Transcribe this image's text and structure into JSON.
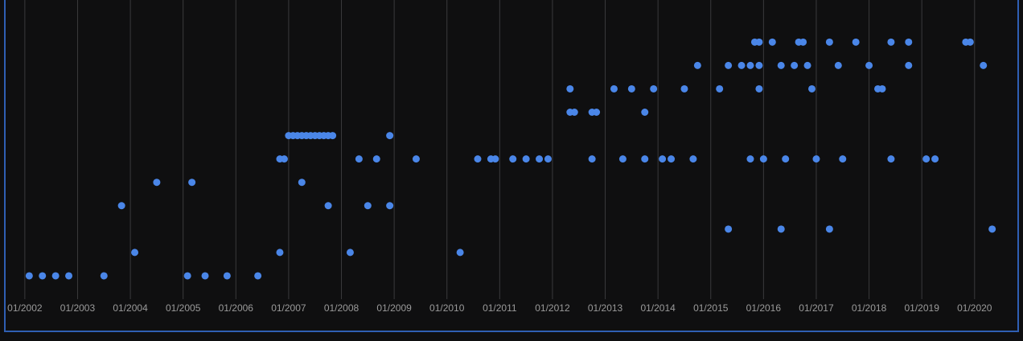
{
  "chart_data": {
    "type": "scatter",
    "xlim": [
      "2001-09",
      "2020-10"
    ],
    "ylim": [
      0,
      12.8
    ],
    "xticks": [
      {
        "value": "2002-01",
        "label": "01/2002"
      },
      {
        "value": "2003-01",
        "label": "01/2003"
      },
      {
        "value": "2004-01",
        "label": "01/2004"
      },
      {
        "value": "2005-01",
        "label": "01/2005"
      },
      {
        "value": "2006-01",
        "label": "01/2006"
      },
      {
        "value": "2007-01",
        "label": "01/2007"
      },
      {
        "value": "2008-01",
        "label": "01/2008"
      },
      {
        "value": "2009-01",
        "label": "01/2009"
      },
      {
        "value": "2010-01",
        "label": "01/2010"
      },
      {
        "value": "2011-01",
        "label": "01/2011"
      },
      {
        "value": "2012-01",
        "label": "01/2012"
      },
      {
        "value": "2013-01",
        "label": "01/2013"
      },
      {
        "value": "2014-01",
        "label": "01/2014"
      },
      {
        "value": "2015-01",
        "label": "01/2015"
      },
      {
        "value": "2016-01",
        "label": "01/2016"
      },
      {
        "value": "2017-01",
        "label": "01/2017"
      },
      {
        "value": "2018-01",
        "label": "01/2018"
      },
      {
        "value": "2019-01",
        "label": "01/2019"
      },
      {
        "value": "2020-01",
        "label": "01/2020"
      }
    ],
    "grid": true,
    "series": [
      {
        "color": "#4a86e8",
        "x": [
          "2002-02",
          "2002-05",
          "2002-08",
          "2002-11",
          "2003-07",
          "2005-02",
          "2005-06",
          "2005-11",
          "2006-06",
          "2004-02",
          "2006-11",
          "2008-03",
          "2010-04",
          "2015-05",
          "2016-05",
          "2017-04",
          "2020-05",
          "2003-11",
          "2007-10",
          "2008-07",
          "2008-12",
          "2004-07",
          "2005-03",
          "2007-04",
          "2006-11",
          "2006-12",
          "2008-05",
          "2008-09",
          "2009-06",
          "2010-08",
          "2010-11",
          "2010-12",
          "2011-04",
          "2011-07",
          "2011-10",
          "2011-12",
          "2012-10",
          "2013-05",
          "2013-10",
          "2014-02",
          "2014-04",
          "2014-09",
          "2015-10",
          "2016-01",
          "2016-06",
          "2017-01",
          "2017-07",
          "2018-06",
          "2019-02",
          "2019-04",
          "2007-01",
          "2007-02",
          "2007-03",
          "2007-04",
          "2007-05",
          "2007-06",
          "2007-07",
          "2007-08",
          "2007-09",
          "2007-10",
          "2007-11",
          "2008-12",
          "2012-05",
          "2012-06",
          "2012-10",
          "2012-11",
          "2013-10",
          "2012-05",
          "2013-03",
          "2013-07",
          "2013-12",
          "2014-07",
          "2015-03",
          "2015-12",
          "2016-12",
          "2018-03",
          "2018-04",
          "2014-10",
          "2015-05",
          "2015-08",
          "2015-10",
          "2015-12",
          "2016-05",
          "2016-08",
          "2016-11",
          "2017-06",
          "2018-01",
          "2018-10",
          "2020-03",
          "2015-11",
          "2015-12",
          "2016-03",
          "2016-09",
          "2016-10",
          "2017-04",
          "2017-10",
          "2018-06",
          "2018-10",
          "2019-11",
          "2019-12"
        ],
        "values": [
          1,
          1,
          1,
          1,
          1,
          1,
          1,
          1,
          1,
          2,
          2,
          2,
          2,
          3,
          3,
          3,
          3,
          4,
          4,
          4,
          4,
          5,
          5,
          5,
          6,
          6,
          6,
          6,
          6,
          6,
          6,
          6,
          6,
          6,
          6,
          6,
          6,
          6,
          6,
          6,
          6,
          6,
          6,
          6,
          6,
          6,
          6,
          6,
          6,
          6,
          7,
          7,
          7,
          7,
          7,
          7,
          7,
          7,
          7,
          7,
          7,
          7,
          8,
          8,
          8,
          8,
          8,
          9,
          9,
          9,
          9,
          9,
          9,
          9,
          9,
          9,
          9,
          10,
          10,
          10,
          10,
          10,
          10,
          10,
          10,
          10,
          10,
          10,
          10,
          11,
          11,
          11,
          11,
          11,
          11,
          11,
          11,
          11,
          11,
          11
        ]
      }
    ]
  }
}
